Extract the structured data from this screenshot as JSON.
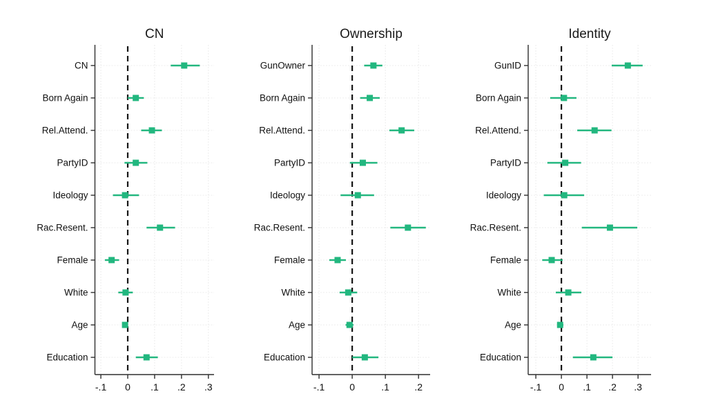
{
  "figure": {
    "background": "#ffffff",
    "accent_color": "#22b77f",
    "axis_color": "#2e2e2e",
    "grid_color": "#ececec",
    "zero_line_color": "#141414",
    "text_color": "#111111"
  },
  "chart_data": [
    {
      "type": "scatter",
      "subtype": "coefficient-plot-with-ci",
      "title": "CN",
      "categories": [
        "CN",
        "Born Again",
        "Rel.Attend.",
        "PartyID",
        "Ideology",
        "Rac.Resent.",
        "Female",
        "White",
        "Age",
        "Education"
      ],
      "series": [
        {
          "name": "estimate",
          "values": [
            0.21,
            0.03,
            0.09,
            0.03,
            -0.01,
            0.12,
            -0.06,
            -0.008,
            -0.01,
            0.07
          ]
        }
      ],
      "ci_low": [
        0.16,
        0.0,
        0.05,
        -0.012,
        -0.055,
        0.07,
        -0.085,
        -0.035,
        -0.02,
        0.03
      ],
      "ci_high": [
        0.268,
        0.06,
        0.127,
        0.073,
        0.042,
        0.176,
        -0.032,
        0.019,
        0.0,
        0.112
      ],
      "xticks": [
        -0.1,
        0,
        0.1,
        0.2,
        0.3
      ],
      "xtick_labels": [
        "-.1",
        "0",
        ".1",
        ".2",
        ".3"
      ],
      "xlim": [
        -0.122,
        0.321
      ],
      "zero_reference_line": 0,
      "grid": true,
      "legend": false,
      "xlabel": "",
      "ylabel": ""
    },
    {
      "type": "scatter",
      "subtype": "coefficient-plot-with-ci",
      "title": "Ownership",
      "categories": [
        "GunOwner",
        "Born Again",
        "Rel.Attend.",
        "PartyID",
        "Ideology",
        "Rac.Resent.",
        "Female",
        "White",
        "Age",
        "Education"
      ],
      "series": [
        {
          "name": "estimate",
          "values": [
            0.064,
            0.053,
            0.149,
            0.032,
            0.017,
            0.168,
            -0.044,
            -0.012,
            -0.008,
            0.038
          ]
        }
      ],
      "ci_low": [
        0.036,
        0.024,
        0.112,
        -0.007,
        -0.035,
        0.115,
        -0.069,
        -0.038,
        -0.02,
        0.0
      ],
      "ci_high": [
        0.091,
        0.083,
        0.187,
        0.076,
        0.066,
        0.222,
        -0.019,
        0.015,
        0.004,
        0.079
      ],
      "xticks": [
        -0.1,
        0,
        0.1,
        0.2
      ],
      "xtick_labels": [
        "-.1",
        "0",
        ".1",
        ".2"
      ],
      "xlim": [
        -0.121,
        0.235
      ],
      "zero_reference_line": 0,
      "grid": true,
      "legend": false,
      "xlabel": "",
      "ylabel": ""
    },
    {
      "type": "scatter",
      "subtype": "coefficient-plot-with-ci",
      "title": "Identity",
      "categories": [
        "GunID",
        "Born Again",
        "Rel.Attend.",
        "PartyID",
        "Ideology",
        "Rac.Resent.",
        "Female",
        "White",
        "Age",
        "Education"
      ],
      "series": [
        {
          "name": "estimate",
          "values": [
            0.26,
            0.01,
            0.13,
            0.015,
            0.011,
            0.19,
            -0.038,
            0.027,
            -0.005,
            0.125
          ]
        }
      ],
      "ci_low": [
        0.197,
        -0.044,
        0.062,
        -0.055,
        -0.069,
        0.08,
        -0.075,
        -0.022,
        -0.016,
        0.045
      ],
      "ci_high": [
        0.318,
        0.059,
        0.196,
        0.077,
        0.089,
        0.297,
        0.005,
        0.078,
        0.008,
        0.2
      ],
      "xticks": [
        -0.1,
        0,
        0.1,
        0.2,
        0.3
      ],
      "xtick_labels": [
        "-.1",
        "0",
        ".1",
        ".2",
        ".3"
      ],
      "xlim": [
        -0.13,
        0.351
      ],
      "zero_reference_line": 0,
      "grid": true,
      "legend": false,
      "xlabel": "",
      "ylabel": ""
    }
  ]
}
